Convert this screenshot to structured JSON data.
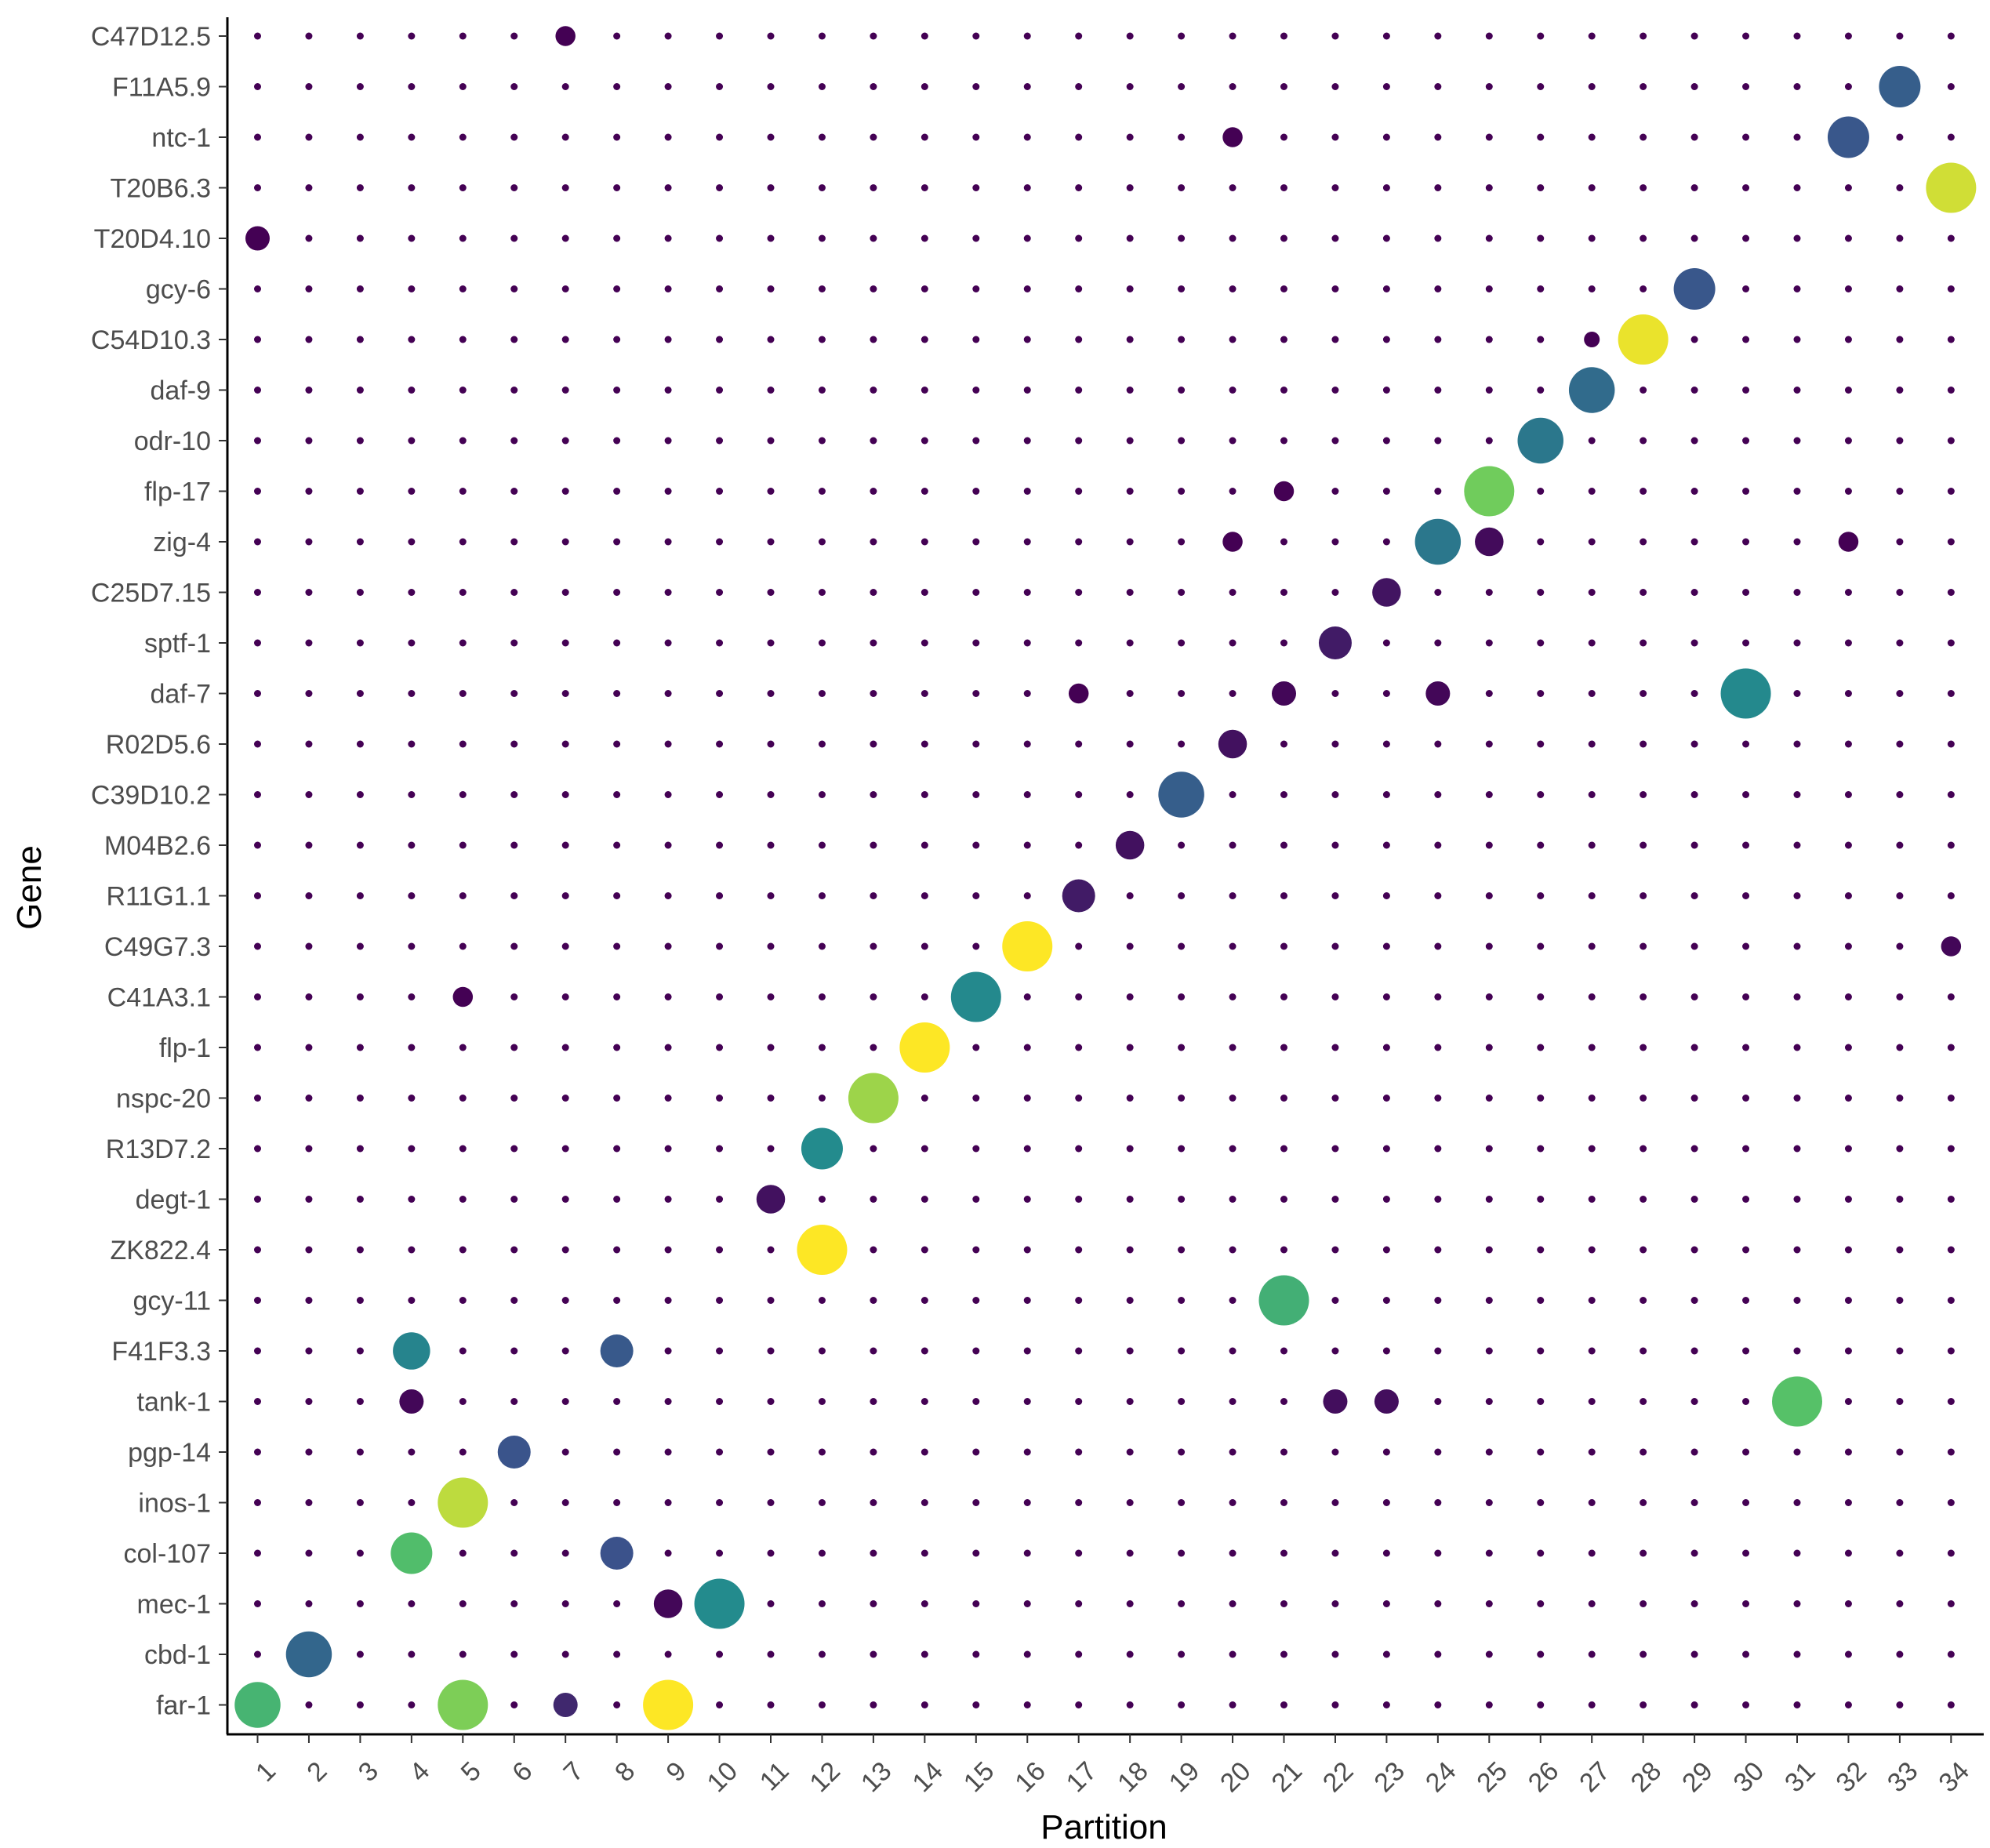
{
  "chart_data": {
    "type": "scatter",
    "subtype": "dot-plot",
    "xlabel": "Partition",
    "ylabel": "Gene",
    "grid": false,
    "x_categories": [
      "1",
      "2",
      "3",
      "4",
      "5",
      "6",
      "7",
      "8",
      "9",
      "10",
      "11",
      "12",
      "13",
      "14",
      "15",
      "16",
      "17",
      "18",
      "19",
      "20",
      "21",
      "22",
      "23",
      "24",
      "25",
      "26",
      "27",
      "28",
      "29",
      "30",
      "31",
      "32",
      "33",
      "34"
    ],
    "y_categories": [
      "C47D12.5",
      "F11A5.9",
      "ntc-1",
      "T20B6.3",
      "T20D4.10",
      "gcy-6",
      "C54D10.3",
      "daf-9",
      "odr-10",
      "flp-17",
      "zig-4",
      "C25D7.15",
      "sptf-1",
      "daf-7",
      "R02D5.6",
      "C39D10.2",
      "M04B2.6",
      "R11G1.1",
      "C49G7.3",
      "C41A3.1",
      "flp-1",
      "nspc-20",
      "R13D7.2",
      "degt-1",
      "ZK822.4",
      "gcy-11",
      "F41F3.3",
      "tank-1",
      "pgp-14",
      "inos-1",
      "col-107",
      "mec-1",
      "cbd-1",
      "far-1"
    ],
    "palette": [
      "#440154",
      "#3b528b",
      "#21908d",
      "#5dc863",
      "#fde725"
    ],
    "default_point": {
      "size": 1,
      "color": 0
    },
    "highlighted_points": [
      {
        "x": "7",
        "y": "C47D12.5",
        "size": 2.5,
        "color": 0
      },
      {
        "x": "33",
        "y": "F11A5.9",
        "size": 5,
        "color": 0.3
      },
      {
        "x": "32",
        "y": "ntc-1",
        "size": 5,
        "color": 0.27
      },
      {
        "x": "20",
        "y": "ntc-1",
        "size": 2.5,
        "color": 0
      },
      {
        "x": "34",
        "y": "T20B6.3",
        "size": 6,
        "color": 0.93
      },
      {
        "x": "1",
        "y": "T20D4.10",
        "size": 3,
        "color": 0
      },
      {
        "x": "29",
        "y": "gcy-6",
        "size": 5,
        "color": 0.27
      },
      {
        "x": "28",
        "y": "C54D10.3",
        "size": 6,
        "color": 0.97
      },
      {
        "x": "27",
        "y": "C54D10.3",
        "size": 2,
        "color": 0
      },
      {
        "x": "27",
        "y": "daf-9",
        "size": 5.5,
        "color": 0.35
      },
      {
        "x": "26",
        "y": "odr-10",
        "size": 5.5,
        "color": 0.4
      },
      {
        "x": "25",
        "y": "flp-17",
        "size": 6,
        "color": 0.78
      },
      {
        "x": "21",
        "y": "flp-17",
        "size": 2.5,
        "color": 0
      },
      {
        "x": "24",
        "y": "zig-4",
        "size": 5.5,
        "color": 0.4
      },
      {
        "x": "25",
        "y": "zig-4",
        "size": 3.5,
        "color": 0.03
      },
      {
        "x": "20",
        "y": "zig-4",
        "size": 2.5,
        "color": 0
      },
      {
        "x": "32",
        "y": "zig-4",
        "size": 2.5,
        "color": 0
      },
      {
        "x": "23",
        "y": "C25D7.15",
        "size": 3.5,
        "color": 0.06
      },
      {
        "x": "22",
        "y": "sptf-1",
        "size": 4,
        "color": 0.08
      },
      {
        "x": "30",
        "y": "daf-7",
        "size": 6,
        "color": 0.47
      },
      {
        "x": "17",
        "y": "daf-7",
        "size": 2.5,
        "color": 0
      },
      {
        "x": "21",
        "y": "daf-7",
        "size": 3,
        "color": 0.02
      },
      {
        "x": "24",
        "y": "daf-7",
        "size": 3,
        "color": 0.02
      },
      {
        "x": "20",
        "y": "R02D5.6",
        "size": 3.5,
        "color": 0.05
      },
      {
        "x": "19",
        "y": "C39D10.2",
        "size": 5.5,
        "color": 0.3
      },
      {
        "x": "18",
        "y": "M04B2.6",
        "size": 3.5,
        "color": 0.05
      },
      {
        "x": "17",
        "y": "R11G1.1",
        "size": 4,
        "color": 0.08
      },
      {
        "x": "16",
        "y": "C49G7.3",
        "size": 6,
        "color": 1
      },
      {
        "x": "34",
        "y": "C49G7.3",
        "size": 2.5,
        "color": 0.02
      },
      {
        "x": "15",
        "y": "C41A3.1",
        "size": 6,
        "color": 0.47
      },
      {
        "x": "5",
        "y": "C41A3.1",
        "size": 2.5,
        "color": 0
      },
      {
        "x": "14",
        "y": "flp-1",
        "size": 6,
        "color": 1
      },
      {
        "x": "13",
        "y": "nspc-20",
        "size": 6,
        "color": 0.85
      },
      {
        "x": "12",
        "y": "R13D7.2",
        "size": 5,
        "color": 0.48
      },
      {
        "x": "11",
        "y": "degt-1",
        "size": 3.5,
        "color": 0.05
      },
      {
        "x": "12",
        "y": "ZK822.4",
        "size": 6,
        "color": 1
      },
      {
        "x": "21",
        "y": "gcy-11",
        "size": 6,
        "color": 0.64
      },
      {
        "x": "4",
        "y": "F41F3.3",
        "size": 4.5,
        "color": 0.45
      },
      {
        "x": "8",
        "y": "F41F3.3",
        "size": 4,
        "color": 0.28
      },
      {
        "x": "31",
        "y": "tank-1",
        "size": 6,
        "color": 0.72
      },
      {
        "x": "4",
        "y": "tank-1",
        "size": 3,
        "color": 0.02
      },
      {
        "x": "22",
        "y": "tank-1",
        "size": 3,
        "color": 0.04
      },
      {
        "x": "23",
        "y": "tank-1",
        "size": 3,
        "color": 0.04
      },
      {
        "x": "6",
        "y": "pgp-14",
        "size": 4,
        "color": 0.26
      },
      {
        "x": "5",
        "y": "inos-1",
        "size": 6,
        "color": 0.9
      },
      {
        "x": "4",
        "y": "col-107",
        "size": 5,
        "color": 0.7
      },
      {
        "x": "8",
        "y": "col-107",
        "size": 4,
        "color": 0.25
      },
      {
        "x": "10",
        "y": "mec-1",
        "size": 6,
        "color": 0.48
      },
      {
        "x": "9",
        "y": "mec-1",
        "size": 3.5,
        "color": 0.02
      },
      {
        "x": "2",
        "y": "cbd-1",
        "size": 5.5,
        "color": 0.33
      },
      {
        "x": "1",
        "y": "far-1",
        "size": 5.5,
        "color": 0.66
      },
      {
        "x": "5",
        "y": "far-1",
        "size": 6,
        "color": 0.8
      },
      {
        "x": "9",
        "y": "far-1",
        "size": 6,
        "color": 1
      },
      {
        "x": "7",
        "y": "far-1",
        "size": 3,
        "color": 0.12
      }
    ]
  }
}
